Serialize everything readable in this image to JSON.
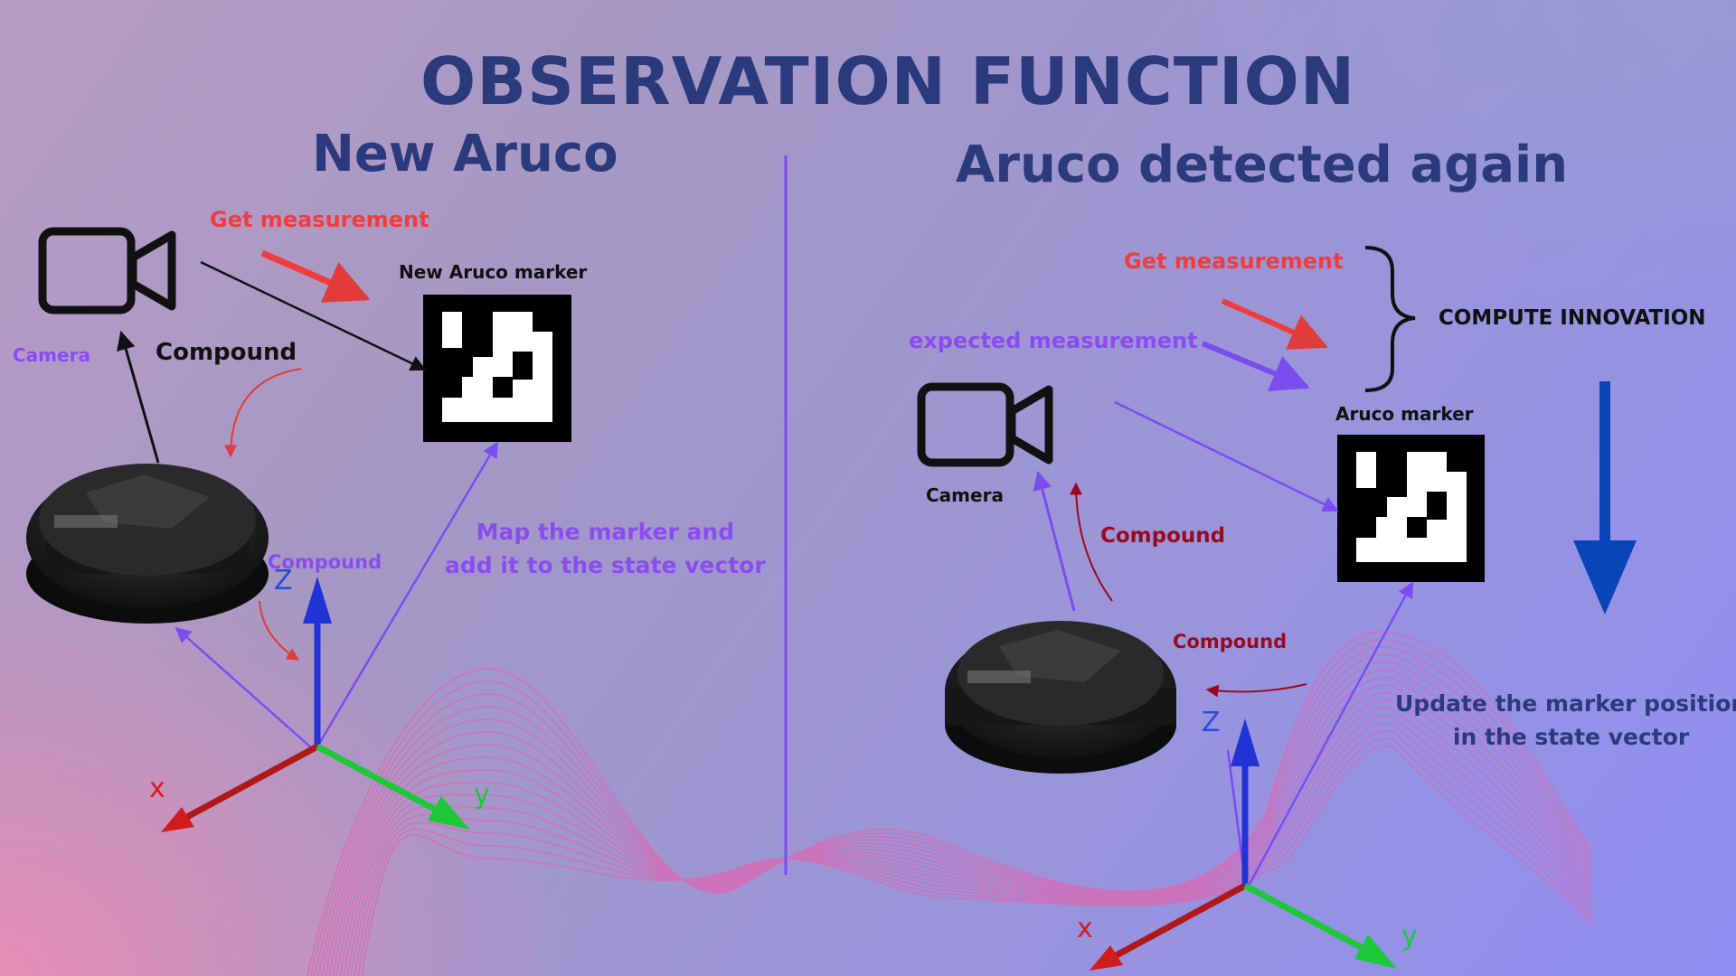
{
  "title": "OBSERVATION FUNCTION",
  "left": {
    "heading": "New Aruco",
    "get_measurement": "Get measurement",
    "marker_label": "New Aruco marker",
    "camera": "Camera",
    "compound_upper": "Compound",
    "compound_lower": "Compound",
    "map_note_line1": "Map the marker and",
    "map_note_line2": "add it to the state vector",
    "axis_z": "Z",
    "axis_x": "x",
    "axis_y": "y"
  },
  "right": {
    "heading": "Aruco detected again",
    "get_measurement": "Get measurement",
    "expected_measurement": "expected measurement",
    "compute_innovation": "COMPUTE INNOVATION",
    "marker_label": "Aruco marker",
    "camera": "Camera",
    "compound_upper": "Compound",
    "compound_lower": "Compound",
    "update_note_line1": "Update the marker position",
    "update_note_line2": "in the state vector",
    "axis_z": "Z",
    "axis_x": "x",
    "axis_y": "y"
  },
  "colors": {
    "title": "#2b3a7c",
    "measurement": "#f03c3c",
    "expected": "#8a4cf0",
    "compound_dark": "#9a0a1e",
    "update_arrow": "#0a45b8"
  }
}
